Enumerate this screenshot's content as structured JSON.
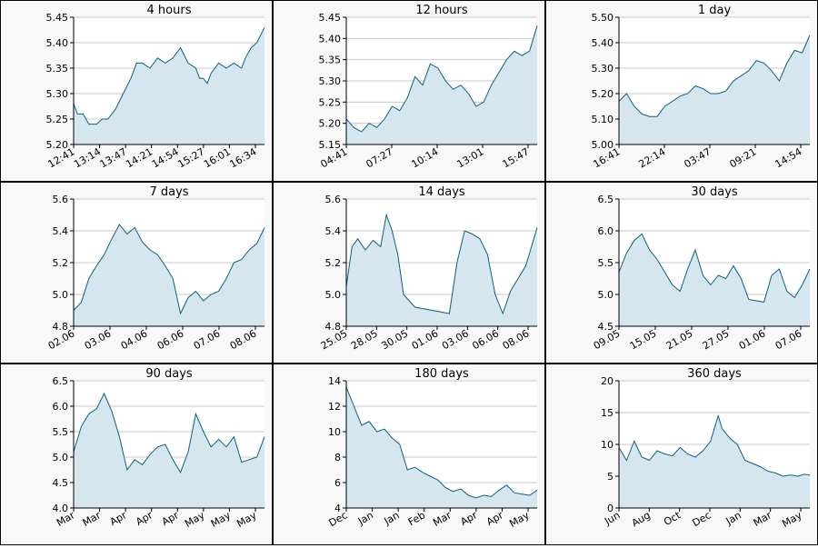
{
  "colors": {
    "line": "#0b6181",
    "fill": "#d6e6ee",
    "grid": "#c8c8c8",
    "axis": "#000000",
    "panel_bg": "#f8f8f8"
  },
  "chart_data": [
    {
      "type": "area",
      "title": "4 hours",
      "ylim": [
        5.2,
        5.45
      ],
      "yticks": [
        "5.20",
        "5.25",
        "5.30",
        "5.35",
        "5.40",
        "5.45"
      ],
      "xticks": [
        "12:41",
        "13:14",
        "13:47",
        "14:21",
        "14:54",
        "15:27",
        "16:01",
        "16:34"
      ],
      "series": [
        {
          "x": [
            0,
            0.02,
            0.05,
            0.08,
            0.12,
            0.15,
            0.18,
            0.22,
            0.26,
            0.3,
            0.33,
            0.36,
            0.4,
            0.44,
            0.48,
            0.52,
            0.56,
            0.6,
            0.64,
            0.66,
            0.68,
            0.7,
            0.72,
            0.76,
            0.8,
            0.84,
            0.88,
            0.9,
            0.93,
            0.96,
            1.0
          ],
          "y": [
            5.28,
            5.26,
            5.26,
            5.24,
            5.24,
            5.25,
            5.25,
            5.27,
            5.3,
            5.33,
            5.36,
            5.36,
            5.35,
            5.37,
            5.36,
            5.37,
            5.39,
            5.36,
            5.35,
            5.33,
            5.33,
            5.32,
            5.34,
            5.36,
            5.35,
            5.36,
            5.35,
            5.37,
            5.39,
            5.4,
            5.43
          ]
        }
      ]
    },
    {
      "type": "area",
      "title": "12 hours",
      "ylim": [
        5.15,
        5.45
      ],
      "yticks": [
        "5.15",
        "5.20",
        "5.25",
        "5.30",
        "5.35",
        "5.40",
        "5.45"
      ],
      "xticks": [
        "04:41",
        "07:27",
        "10:14",
        "13:01",
        "15:47"
      ],
      "series": [
        {
          "x": [
            0,
            0.04,
            0.08,
            0.12,
            0.16,
            0.2,
            0.24,
            0.28,
            0.32,
            0.36,
            0.4,
            0.44,
            0.48,
            0.52,
            0.56,
            0.6,
            0.64,
            0.68,
            0.72,
            0.76,
            0.8,
            0.84,
            0.88,
            0.92,
            0.96,
            1.0
          ],
          "y": [
            5.21,
            5.19,
            5.18,
            5.2,
            5.19,
            5.21,
            5.24,
            5.23,
            5.26,
            5.31,
            5.29,
            5.34,
            5.33,
            5.3,
            5.28,
            5.29,
            5.27,
            5.24,
            5.25,
            5.29,
            5.32,
            5.35,
            5.37,
            5.36,
            5.37,
            5.43
          ]
        }
      ]
    },
    {
      "type": "area",
      "title": "1 day",
      "ylim": [
        5.0,
        5.5
      ],
      "yticks": [
        "5.00",
        "5.10",
        "5.20",
        "5.30",
        "5.40",
        "5.50"
      ],
      "xticks": [
        "16:41",
        "22:14",
        "03:47",
        "09:21",
        "14:54"
      ],
      "series": [
        {
          "x": [
            0,
            0.04,
            0.08,
            0.12,
            0.16,
            0.2,
            0.24,
            0.28,
            0.32,
            0.36,
            0.4,
            0.44,
            0.48,
            0.52,
            0.56,
            0.6,
            0.64,
            0.68,
            0.72,
            0.76,
            0.8,
            0.84,
            0.88,
            0.92,
            0.96,
            1.0
          ],
          "y": [
            5.17,
            5.2,
            5.15,
            5.12,
            5.11,
            5.11,
            5.15,
            5.17,
            5.19,
            5.2,
            5.23,
            5.22,
            5.2,
            5.2,
            5.21,
            5.25,
            5.27,
            5.29,
            5.33,
            5.32,
            5.29,
            5.25,
            5.32,
            5.37,
            5.36,
            5.43
          ]
        }
      ]
    },
    {
      "type": "area",
      "title": "7 days",
      "ylim": [
        4.8,
        5.6
      ],
      "yticks": [
        "4.8",
        "5.0",
        "5.2",
        "5.4",
        "5.6"
      ],
      "xticks": [
        "02.06",
        "03.06",
        "04.06",
        "06.06",
        "07.06",
        "08.06"
      ],
      "series": [
        {
          "x": [
            0,
            0.04,
            0.08,
            0.12,
            0.16,
            0.2,
            0.24,
            0.28,
            0.32,
            0.36,
            0.4,
            0.44,
            0.48,
            0.52,
            0.56,
            0.6,
            0.64,
            0.68,
            0.72,
            0.76,
            0.8,
            0.84,
            0.88,
            0.92,
            0.96,
            1.0
          ],
          "y": [
            4.9,
            4.95,
            5.1,
            5.18,
            5.25,
            5.35,
            5.44,
            5.38,
            5.42,
            5.33,
            5.28,
            5.25,
            5.18,
            5.1,
            4.88,
            4.98,
            5.02,
            4.96,
            5.0,
            5.02,
            5.1,
            5.2,
            5.22,
            5.28,
            5.32,
            5.42
          ]
        }
      ]
    },
    {
      "type": "area",
      "title": "14 days",
      "ylim": [
        4.8,
        5.6
      ],
      "yticks": [
        "4.8",
        "5.0",
        "5.2",
        "5.4",
        "5.6"
      ],
      "xticks": [
        "25.05",
        "28.05",
        "30.05",
        "01.06",
        "03.06",
        "06.06",
        "08.06"
      ],
      "series": [
        {
          "x": [
            0,
            0.03,
            0.06,
            0.1,
            0.14,
            0.18,
            0.21,
            0.24,
            0.27,
            0.3,
            0.36,
            0.45,
            0.54,
            0.58,
            0.62,
            0.66,
            0.7,
            0.74,
            0.78,
            0.82,
            0.86,
            0.9,
            0.94,
            0.97,
            1.0
          ],
          "y": [
            5.05,
            5.3,
            5.35,
            5.28,
            5.34,
            5.3,
            5.5,
            5.4,
            5.25,
            5.0,
            4.92,
            4.9,
            4.88,
            5.2,
            5.4,
            5.38,
            5.35,
            5.25,
            5.0,
            4.88,
            5.02,
            5.1,
            5.18,
            5.3,
            5.42
          ]
        }
      ]
    },
    {
      "type": "area",
      "title": "30 days",
      "ylim": [
        4.5,
        6.5
      ],
      "yticks": [
        "4.5",
        "5.0",
        "5.5",
        "6.0",
        "6.5"
      ],
      "xticks": [
        "09.05",
        "15.05",
        "21.05",
        "27.05",
        "01.06",
        "07.06"
      ],
      "series": [
        {
          "x": [
            0,
            0.04,
            0.08,
            0.12,
            0.16,
            0.2,
            0.24,
            0.28,
            0.32,
            0.36,
            0.4,
            0.44,
            0.48,
            0.52,
            0.56,
            0.6,
            0.64,
            0.68,
            0.72,
            0.76,
            0.8,
            0.84,
            0.88,
            0.92,
            0.96,
            1.0
          ],
          "y": [
            5.35,
            5.65,
            5.85,
            5.95,
            5.7,
            5.55,
            5.35,
            5.15,
            5.05,
            5.4,
            5.7,
            5.3,
            5.15,
            5.3,
            5.25,
            5.45,
            5.25,
            4.92,
            4.9,
            4.88,
            5.3,
            5.4,
            5.05,
            4.95,
            5.15,
            5.4
          ]
        }
      ]
    },
    {
      "type": "area",
      "title": "90 days",
      "ylim": [
        4.0,
        6.5
      ],
      "yticks": [
        "4.0",
        "4.5",
        "5.0",
        "5.5",
        "6.0",
        "6.5"
      ],
      "xticks": [
        "Mar",
        "Mar",
        "Apr",
        "Apr",
        "Apr",
        "May",
        "May",
        "May"
      ],
      "series": [
        {
          "x": [
            0,
            0.04,
            0.08,
            0.12,
            0.16,
            0.2,
            0.24,
            0.28,
            0.32,
            0.36,
            0.4,
            0.44,
            0.48,
            0.52,
            0.56,
            0.6,
            0.64,
            0.68,
            0.72,
            0.76,
            0.8,
            0.84,
            0.88,
            0.92,
            0.96,
            1.0
          ],
          "y": [
            5.1,
            5.6,
            5.85,
            5.95,
            6.25,
            5.9,
            5.4,
            4.75,
            4.95,
            4.85,
            5.05,
            5.2,
            5.25,
            4.95,
            4.7,
            5.1,
            5.85,
            5.5,
            5.2,
            5.35,
            5.2,
            5.4,
            4.9,
            4.95,
            5.0,
            5.4
          ]
        }
      ]
    },
    {
      "type": "area",
      "title": "180 days",
      "ylim": [
        4,
        14
      ],
      "yticks": [
        "4",
        "6",
        "8",
        "10",
        "12",
        "14"
      ],
      "xticks": [
        "Dec",
        "Jan",
        "Jan",
        "Feb",
        "Mar",
        "Apr",
        "Apr",
        "May"
      ],
      "series": [
        {
          "x": [
            0,
            0.04,
            0.08,
            0.12,
            0.16,
            0.2,
            0.24,
            0.28,
            0.32,
            0.36,
            0.4,
            0.44,
            0.48,
            0.52,
            0.56,
            0.6,
            0.64,
            0.68,
            0.72,
            0.76,
            0.8,
            0.84,
            0.88,
            0.92,
            0.96,
            1.0
          ],
          "y": [
            13.5,
            12.0,
            10.5,
            10.8,
            10.0,
            10.2,
            9.5,
            9.0,
            7.0,
            7.2,
            6.8,
            6.5,
            6.2,
            5.6,
            5.3,
            5.5,
            5.0,
            4.8,
            5.0,
            4.9,
            5.4,
            5.8,
            5.2,
            5.1,
            5.0,
            5.4
          ]
        }
      ]
    },
    {
      "type": "area",
      "title": "360 days",
      "ylim": [
        0,
        20
      ],
      "yticks": [
        "0",
        "5",
        "10",
        "15",
        "20"
      ],
      "xticks": [
        "Jun",
        "Aug",
        "Oct",
        "Dec",
        "Jan",
        "Mar",
        "May"
      ],
      "series": [
        {
          "x": [
            0,
            0.04,
            0.08,
            0.12,
            0.16,
            0.2,
            0.24,
            0.28,
            0.32,
            0.36,
            0.4,
            0.44,
            0.48,
            0.52,
            0.54,
            0.58,
            0.62,
            0.66,
            0.7,
            0.74,
            0.78,
            0.82,
            0.86,
            0.9,
            0.94,
            0.97,
            1.0
          ],
          "y": [
            9.5,
            7.5,
            10.5,
            8.0,
            7.5,
            9.0,
            8.5,
            8.2,
            9.5,
            8.5,
            8.0,
            9.0,
            10.5,
            14.5,
            12.5,
            11.0,
            10.0,
            7.5,
            7.0,
            6.5,
            5.8,
            5.5,
            5.0,
            5.2,
            5.0,
            5.3,
            5.2
          ]
        }
      ]
    }
  ]
}
